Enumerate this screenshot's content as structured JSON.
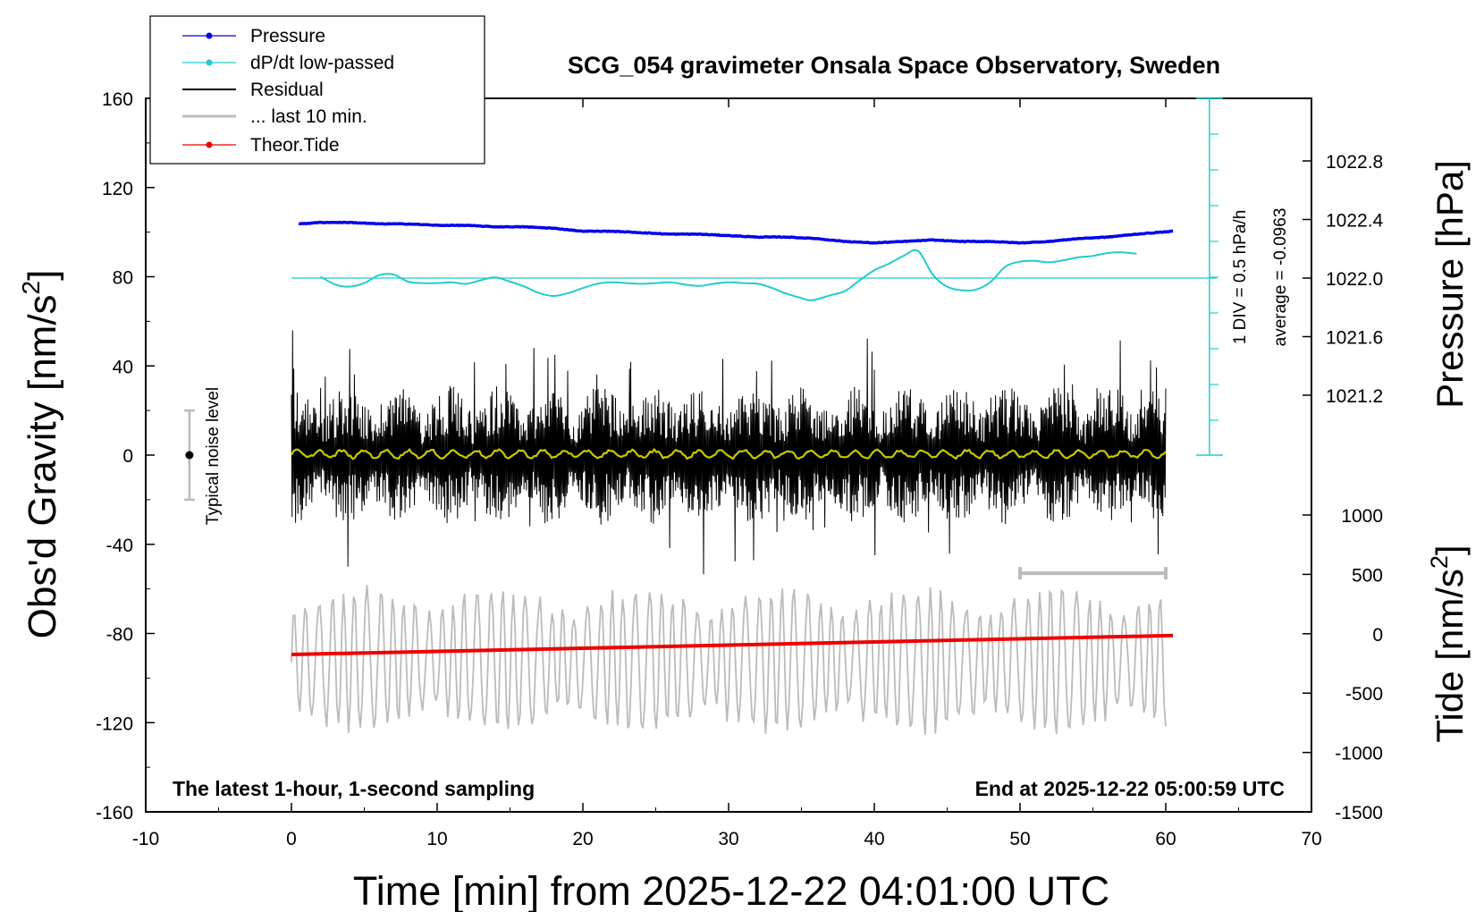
{
  "chart_data": {
    "type": "line",
    "title": "SCG_054 gravimeter Onsala Space Observatory, Sweden",
    "xlabel": "Time [min] from 2025-12-22 04:01:00 UTC",
    "xlim": [
      -10,
      70
    ],
    "x_ticks": [
      "-10",
      "0",
      "10",
      "20",
      "30",
      "40",
      "50",
      "60",
      "70"
    ],
    "left_axis": {
      "label": "Obs'd Gravity [nm/s",
      "label_sup": "2",
      "label_end": "]",
      "ylim": [
        -160,
        160
      ],
      "ticks": [
        "160",
        "120",
        "80",
        "40",
        "0",
        "-40",
        "-80",
        "-120",
        "-160"
      ]
    },
    "pressure_axis": {
      "label": "Pressure [hPa]",
      "ticks": [
        "1022.8",
        "1022.4",
        "1022.0",
        "1021.6",
        "1021.2"
      ],
      "tick_values": [
        1022.8,
        1022.4,
        1022.0,
        1021.6,
        1021.2
      ]
    },
    "tide_axis": {
      "label": "Tide [nm/s",
      "label_sup": "2",
      "label_end": "]",
      "ticks": [
        "1000",
        "500",
        "0",
        "-500",
        "-1000",
        "-1500"
      ],
      "tick_values": [
        1000,
        500,
        0,
        -500,
        -1000,
        -1500
      ]
    },
    "legend": {
      "placement": "top-left",
      "entries": [
        {
          "name": "Pressure",
          "color": "#0000ee",
          "marker": true
        },
        {
          "name": "dP/dt low-passed",
          "color": "#22cccc",
          "marker": true
        },
        {
          "name": "Residual",
          "color": "#000000",
          "marker": false
        },
        {
          "name": "... last 10 min.",
          "color": "#bbbbbb",
          "marker": false
        },
        {
          "name": "Theor.Tide",
          "color": "#ee0000",
          "marker": true
        }
      ]
    },
    "annotations": {
      "noise_level": "Typical noise level",
      "scale_div": "1 DIV = 0.5 hPa/h",
      "average": "average = -0.0963",
      "bottom_left": "The latest 1-hour, 1-second sampling",
      "bottom_right": "End at 2025-12-22 05:00:59 UTC"
    },
    "series": [
      {
        "name": "Pressure",
        "unit": "hPa",
        "color": "#0000ee",
        "x": [
          0.5,
          2,
          4,
          6,
          8,
          10,
          12,
          14,
          16,
          18,
          20,
          22,
          24,
          26,
          28,
          30,
          32,
          34,
          36,
          38,
          40,
          42,
          44,
          46,
          48,
          50,
          52,
          54,
          56,
          58,
          60.5
        ],
        "values": [
          1022.37,
          1022.38,
          1022.38,
          1022.37,
          1022.37,
          1022.36,
          1022.36,
          1022.35,
          1022.35,
          1022.34,
          1022.32,
          1022.32,
          1022.31,
          1022.3,
          1022.3,
          1022.29,
          1022.28,
          1022.28,
          1022.27,
          1022.25,
          1022.24,
          1022.25,
          1022.26,
          1022.25,
          1022.25,
          1022.24,
          1022.25,
          1022.27,
          1022.28,
          1022.3,
          1022.32
        ]
      },
      {
        "name": "dP/dt low-passed",
        "unit": "hPa/h",
        "color": "#22cccc",
        "x": [
          2,
          3,
          4,
          5,
          6,
          7,
          8,
          9,
          10,
          11,
          12,
          13,
          14,
          15,
          16,
          17,
          18,
          19,
          20,
          21,
          22,
          23,
          24,
          25,
          26,
          27,
          28,
          29,
          30,
          31,
          32,
          33,
          34,
          35,
          35.5,
          36,
          37,
          38,
          39,
          40,
          41,
          42,
          43,
          44,
          45,
          46,
          47,
          48,
          49,
          50,
          51,
          52,
          53,
          54,
          55,
          56,
          57,
          58
        ],
        "values": [
          0.02,
          -0.09,
          -0.12,
          -0.07,
          0.04,
          0.05,
          -0.05,
          -0.07,
          -0.07,
          -0.06,
          -0.08,
          -0.03,
          0.01,
          -0.05,
          -0.12,
          -0.21,
          -0.25,
          -0.21,
          -0.14,
          -0.08,
          -0.06,
          -0.07,
          -0.08,
          -0.07,
          -0.06,
          -0.09,
          -0.11,
          -0.08,
          -0.06,
          -0.07,
          -0.08,
          -0.14,
          -0.22,
          -0.28,
          -0.31,
          -0.3,
          -0.24,
          -0.18,
          -0.03,
          0.11,
          0.2,
          0.31,
          0.38,
          0.05,
          -0.12,
          -0.17,
          -0.16,
          -0.05,
          0.16,
          0.23,
          0.24,
          0.22,
          0.25,
          0.29,
          0.31,
          0.35,
          0.36,
          0.34
        ]
      },
      {
        "name": "Residual",
        "unit": "nm/s2",
        "color": "#000000",
        "note": "about ±25 nm/s2 noise band, peaks to ±60",
        "x_range": [
          0,
          60
        ],
        "amplitude": 25
      },
      {
        "name": "... last 10 min.",
        "unit": "nm/s2",
        "color": "#bbbbbb",
        "x_range": [
          0,
          60
        ],
        "center": -92,
        "amplitude": 22
      },
      {
        "name": "Theor.Tide",
        "unit": "nm/s2",
        "color": "#ee0000",
        "x": [
          0,
          60.5
        ],
        "values": [
          -175,
          -15
        ]
      },
      {
        "name": "smoothed residual",
        "unit": "nm/s2",
        "color": "#c8c800",
        "x_range": [
          0,
          60
        ],
        "center": 0.5
      }
    ],
    "noise_level_bar": {
      "x": -7,
      "center": 0,
      "half_range": 20
    },
    "last_10_min_bar": {
      "x": [
        50,
        60
      ],
      "y": -53
    },
    "pressure_reference_line": 1022.0,
    "grid": false
  }
}
